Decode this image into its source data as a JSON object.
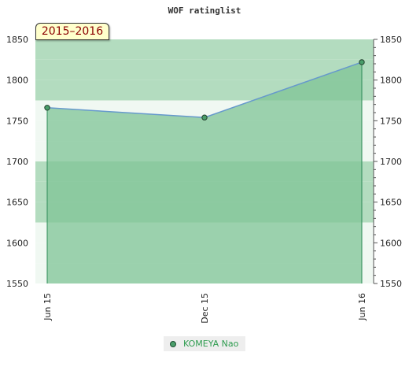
{
  "chart_data": {
    "type": "area",
    "title": "WOF ratinglist",
    "season": "2015–2016",
    "x": [
      "Jun 15",
      "Dec 15",
      "Jun 16"
    ],
    "series": [
      {
        "name": "KOMEYA Nao",
        "values": [
          1766,
          1754,
          1822
        ]
      }
    ],
    "ylim": [
      1550,
      1850
    ],
    "yticks": [
      1550,
      1600,
      1650,
      1700,
      1750,
      1800,
      1850
    ],
    "y_axis_both_sides": true,
    "legend_position": "bottom",
    "grid": true,
    "colors": {
      "line": "#6699cc",
      "fill": "#7fc496",
      "marker": "#4a9e6a",
      "drop_line": "#2e8b57",
      "legend_text": "#2e9c4f",
      "season_text": "#8b0000",
      "season_bg": "#ffffcc"
    }
  }
}
